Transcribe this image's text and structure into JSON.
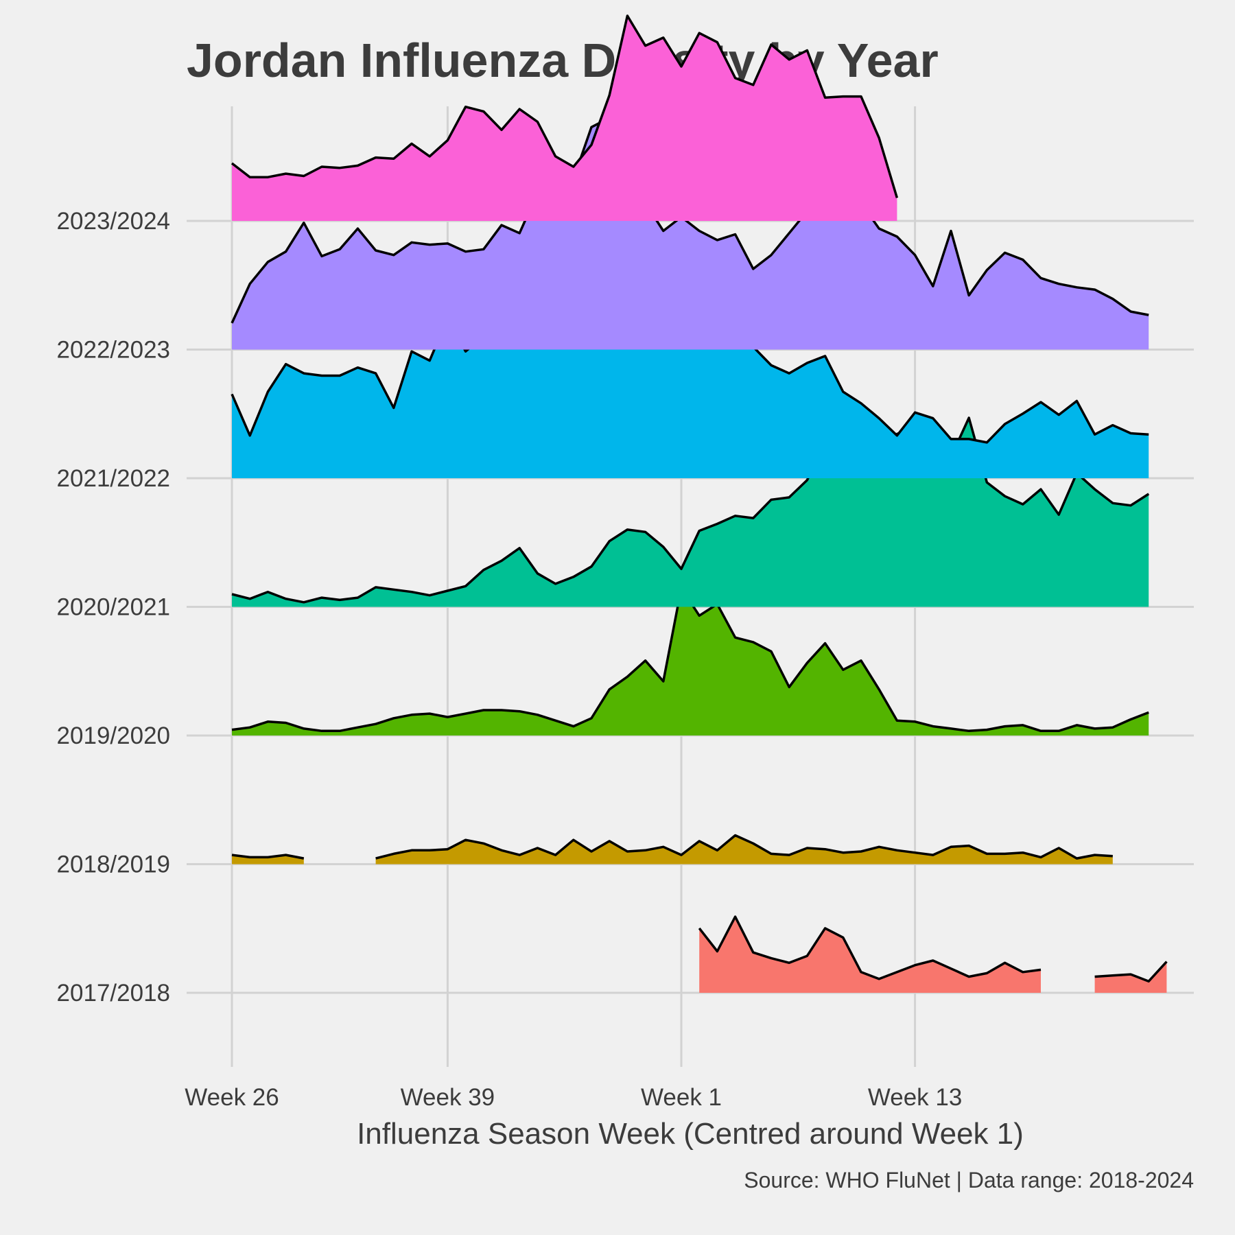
{
  "chart_data": {
    "type": "area",
    "title": "Jordan Influenza Density by Year",
    "xlabel": "Influenza Season Week (Centred around Week 1)",
    "ylabel": "",
    "caption": "Source: WHO FluNet | Data range: 2018-2024",
    "x_ticks": [
      {
        "label": "Week 26",
        "index": 0
      },
      {
        "label": "Week 39",
        "index": 12
      },
      {
        "label": "Week 1",
        "index": 25
      },
      {
        "label": "Week 13",
        "index": 38
      }
    ],
    "x_index_range": [
      -2.5,
      53.8
    ],
    "grid": true,
    "legend": "none",
    "series": [
      {
        "name": "2017/2018",
        "color": "#F8766D",
        "values": [
          null,
          null,
          null,
          null,
          null,
          null,
          null,
          null,
          null,
          null,
          null,
          null,
          null,
          null,
          null,
          null,
          null,
          null,
          null,
          null,
          null,
          null,
          null,
          null,
          null,
          null,
          0.56,
          0.36,
          0.66,
          0.35,
          0.3,
          0.26,
          0.32,
          0.56,
          0.48,
          0.18,
          0.12,
          0.18,
          0.24,
          0.28,
          0.21,
          0.14,
          0.17,
          0.26,
          0.18,
          0.2,
          null,
          null,
          0.14,
          0.15,
          0.16,
          0.1,
          0.27
        ]
      },
      {
        "name": "2018/2019",
        "color": "#C49A00",
        "values": [
          0.08,
          0.06,
          0.06,
          0.08,
          0.05,
          null,
          null,
          null,
          0.05,
          0.09,
          0.12,
          0.12,
          0.13,
          0.21,
          0.18,
          0.12,
          0.08,
          0.14,
          0.08,
          0.21,
          0.11,
          0.2,
          0.11,
          0.12,
          0.15,
          0.08,
          0.2,
          0.12,
          0.25,
          0.18,
          0.09,
          0.08,
          0.14,
          0.13,
          0.1,
          0.11,
          0.15,
          0.12,
          0.1,
          0.08,
          0.15,
          0.16,
          0.09,
          0.09,
          0.1,
          0.06,
          0.14,
          0.05,
          0.08,
          0.07
        ]
      },
      {
        "name": "2019/2020",
        "color": "#53B400",
        "values": [
          0.05,
          0.07,
          0.12,
          0.11,
          0.06,
          0.04,
          0.04,
          0.07,
          0.1,
          0.15,
          0.18,
          0.19,
          0.16,
          0.19,
          0.22,
          0.22,
          0.21,
          0.18,
          0.13,
          0.08,
          0.15,
          0.4,
          0.51,
          0.65,
          0.47,
          1.28,
          1.04,
          1.14,
          0.85,
          0.81,
          0.73,
          0.42,
          0.63,
          0.8,
          0.57,
          0.65,
          0.4,
          0.13,
          0.12,
          0.08,
          0.06,
          0.04,
          0.05,
          0.08,
          0.09,
          0.04,
          0.04,
          0.09,
          0.06,
          0.07,
          0.14,
          0.2
        ]
      },
      {
        "name": "2020/2021",
        "color": "#00C094",
        "values": [
          0.11,
          0.07,
          0.13,
          0.07,
          0.04,
          0.08,
          0.06,
          0.08,
          0.17,
          0.15,
          0.13,
          0.1,
          0.14,
          0.18,
          0.32,
          0.4,
          0.51,
          0.29,
          0.2,
          0.26,
          0.35,
          0.57,
          0.67,
          0.65,
          0.52,
          0.33,
          0.66,
          0.72,
          0.79,
          0.77,
          0.93,
          0.95,
          1.1,
          1.42,
          1.82,
          1.24,
          1.41,
          1.5,
          1.56,
          1.17,
          1.3,
          1.64,
          1.08,
          0.96,
          0.89,
          1.02,
          0.8,
          1.16,
          1.02,
          0.9,
          0.88,
          0.98
        ]
      },
      {
        "name": "2021/2022",
        "color": "#00B6EB",
        "values": [
          0.73,
          0.37,
          0.75,
          0.99,
          0.91,
          0.89,
          0.89,
          0.96,
          0.91,
          0.61,
          1.1,
          1.02,
          1.39,
          1.1,
          1.23,
          1.4,
          1.34,
          1.57,
          1.6,
          1.82,
          1.64,
          1.34,
          1.43,
          1.41,
          1.29,
          1.29,
          1.38,
          1.18,
          1.16,
          1.14,
          0.98,
          0.91,
          1.0,
          1.06,
          0.75,
          0.65,
          0.52,
          0.37,
          0.57,
          0.52,
          0.34,
          0.34,
          0.31,
          0.47,
          0.56,
          0.66,
          0.55,
          0.67,
          0.38,
          0.46,
          0.39,
          0.38
        ]
      },
      {
        "name": "2022/2023",
        "color": "#A58AFF",
        "values": [
          0.23,
          0.57,
          0.76,
          0.85,
          1.1,
          0.81,
          0.87,
          1.05,
          0.86,
          0.82,
          0.93,
          0.91,
          0.92,
          0.85,
          0.87,
          1.08,
          1.01,
          1.36,
          1.63,
          1.48,
          1.93,
          2.01,
          1.82,
          1.27,
          1.03,
          1.15,
          1.03,
          0.95,
          1.0,
          0.7,
          0.82,
          1.01,
          1.2,
          1.44,
          1.47,
          1.27,
          1.05,
          0.98,
          0.82,
          0.55,
          1.03,
          0.47,
          0.69,
          0.84,
          0.78,
          0.62,
          0.57,
          0.54,
          0.52,
          0.44,
          0.33,
          0.3
        ]
      },
      {
        "name": "2023/2024",
        "color": "#FB61D7",
        "values": [
          0.5,
          0.38,
          0.38,
          0.41,
          0.39,
          0.47,
          0.46,
          0.48,
          0.55,
          0.54,
          0.67,
          0.56,
          0.7,
          0.99,
          0.95,
          0.79,
          0.97,
          0.86,
          0.56,
          0.47,
          0.66,
          1.09,
          1.78,
          1.52,
          1.59,
          1.34,
          1.63,
          1.55,
          1.24,
          1.18,
          1.53,
          1.4,
          1.48,
          1.07,
          1.08,
          1.08,
          0.72,
          0.2
        ]
      }
    ]
  }
}
